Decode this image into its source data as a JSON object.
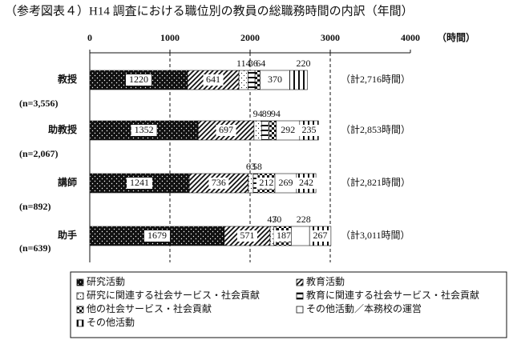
{
  "chart_data": {
    "type": "stacked_barh",
    "title": "（参考図表４）H14 調査における職位別の教員の総職務時間の内訳（年間）",
    "x_unit": "（時間）",
    "categories": [
      "教授",
      "助教授",
      "講師",
      "助手"
    ],
    "n_labels": [
      "(n=3,556)",
      "(n=2,067)",
      "(n=892)",
      "(n=639)"
    ],
    "totals": [
      "（計2,716時間）",
      "（計2,853時間）",
      "（計2,821時間）",
      "（計3,011時間）"
    ],
    "xlim": [
      0,
      4000
    ],
    "xticks": [
      0,
      1000,
      2000,
      3000,
      4000
    ],
    "grid": true,
    "series": [
      {
        "name": "研究活動",
        "color": "#111111",
        "values": [
          1220,
          1352,
          1241,
          1679
        ]
      },
      {
        "name": "教育活動",
        "color": "#111111",
        "values": [
          641,
          697,
          736,
          571
        ]
      },
      {
        "name": "研究に関連する社会サービス・社会貢献",
        "color": "#111111",
        "values": [
          114,
          94,
          63,
          47
        ]
      },
      {
        "name": "教育に関連する社会サービス・社会貢献",
        "color": "#111111",
        "values": [
          86,
          89,
          58,
          30
        ]
      },
      {
        "name": "他の社会サービス・社会貢献",
        "color": "#111111",
        "values": [
          64,
          94,
          212,
          187
        ]
      },
      {
        "name": "その他活動／本務校の運営",
        "color": "#111111",
        "values": [
          370,
          292,
          269,
          228
        ]
      },
      {
        "name": "その他活動",
        "color": "#111111",
        "values": [
          220,
          235,
          242,
          267
        ]
      }
    ]
  }
}
